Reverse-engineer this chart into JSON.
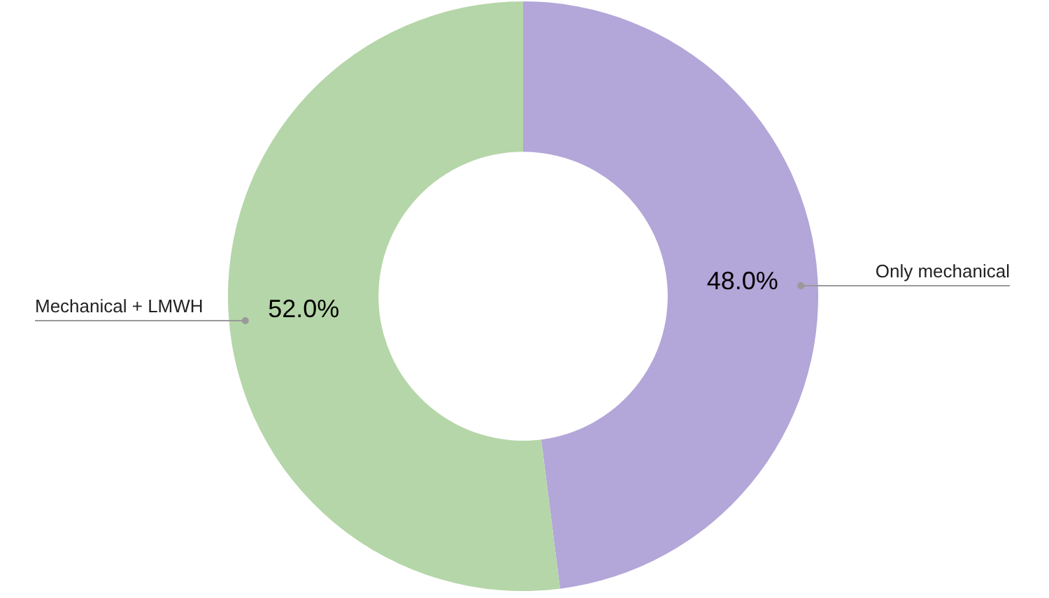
{
  "chart_data": {
    "type": "donut",
    "categories": [
      "Only mechanical",
      "Mechanical + LMWH"
    ],
    "values": [
      48.0,
      52.0
    ],
    "colors": [
      "#b3a6d8",
      "#b5d6a8"
    ],
    "value_labels": [
      "48.0%",
      "52.0%"
    ],
    "legend": false
  }
}
